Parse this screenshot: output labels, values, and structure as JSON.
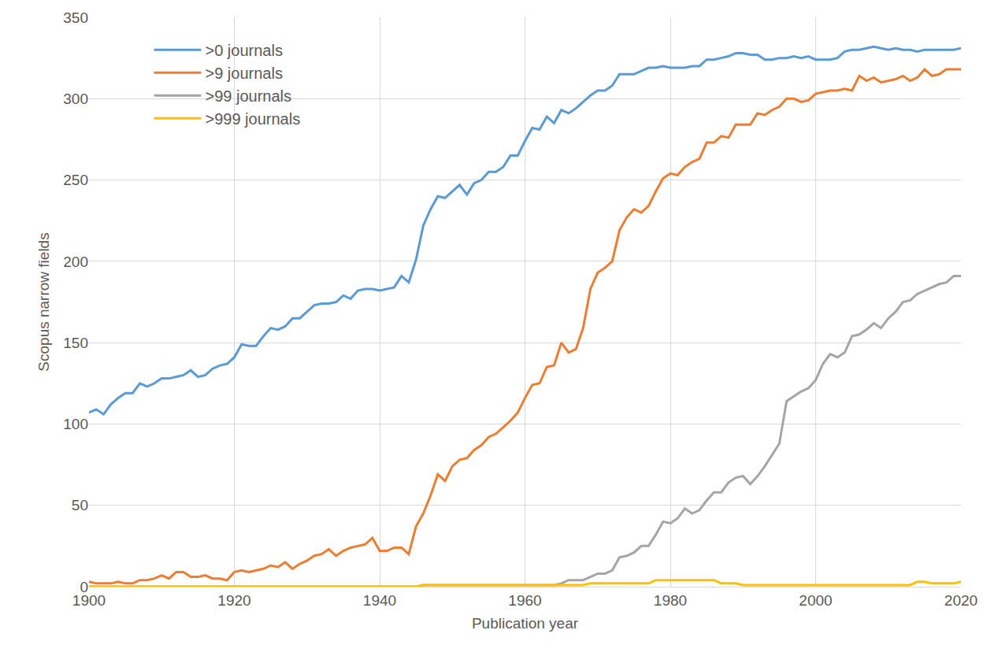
{
  "chart_data": {
    "type": "line",
    "x_label": "Publication year",
    "y_label": "Scopus narrow fields",
    "x": [
      1900,
      1901,
      1902,
      1903,
      1904,
      1905,
      1906,
      1907,
      1908,
      1909,
      1910,
      1911,
      1912,
      1913,
      1914,
      1915,
      1916,
      1917,
      1918,
      1919,
      1920,
      1921,
      1922,
      1923,
      1924,
      1925,
      1926,
      1927,
      1928,
      1929,
      1930,
      1931,
      1932,
      1933,
      1934,
      1935,
      1936,
      1937,
      1938,
      1939,
      1940,
      1941,
      1942,
      1943,
      1944,
      1945,
      1946,
      1947,
      1948,
      1949,
      1950,
      1951,
      1952,
      1953,
      1954,
      1955,
      1956,
      1957,
      1958,
      1959,
      1960,
      1961,
      1962,
      1963,
      1964,
      1965,
      1966,
      1967,
      1968,
      1969,
      1970,
      1971,
      1972,
      1973,
      1974,
      1975,
      1976,
      1977,
      1978,
      1979,
      1980,
      1981,
      1982,
      1983,
      1984,
      1985,
      1986,
      1987,
      1988,
      1989,
      1990,
      1991,
      1992,
      1993,
      1994,
      1995,
      1996,
      1997,
      1998,
      1999,
      2000,
      2001,
      2002,
      2003,
      2004,
      2005,
      2006,
      2007,
      2008,
      2009,
      2010,
      2011,
      2012,
      2013,
      2014,
      2015,
      2016,
      2017,
      2018,
      2019,
      2020
    ],
    "series": [
      {
        "name": ">0 journals",
        "color": "#5B9BD5",
        "values": [
          107,
          109,
          106,
          112,
          116,
          119,
          119,
          125,
          123,
          125,
          128,
          128,
          129,
          130,
          133,
          129,
          130,
          134,
          136,
          137,
          141,
          149,
          148,
          148,
          154,
          159,
          158,
          160,
          165,
          165,
          169,
          173,
          174,
          174,
          175,
          179,
          177,
          182,
          183,
          183,
          182,
          183,
          184,
          191,
          187,
          201,
          222,
          232,
          240,
          239,
          243,
          247,
          241,
          248,
          250,
          255,
          255,
          258,
          265,
          265,
          274,
          282,
          281,
          289,
          285,
          293,
          291,
          294,
          298,
          302,
          305,
          305,
          308,
          315,
          315,
          315,
          317,
          319,
          319,
          320,
          319,
          319,
          319,
          320,
          320,
          324,
          324,
          325,
          326,
          328,
          328,
          327,
          327,
          324,
          324,
          325,
          325,
          326,
          325,
          326,
          324,
          324,
          324,
          325,
          329,
          330,
          330,
          331,
          332,
          331,
          330,
          331,
          330,
          330,
          329,
          330,
          330,
          330,
          330,
          330,
          331
        ]
      },
      {
        "name": ">9 journals",
        "color": "#ED7D31",
        "values": [
          3,
          2,
          2,
          2,
          3,
          2,
          2,
          4,
          4,
          5,
          7,
          5,
          9,
          9,
          6,
          6,
          7,
          5,
          5,
          4,
          9,
          10,
          9,
          10,
          11,
          13,
          12,
          15,
          11,
          14,
          16,
          19,
          20,
          23,
          19,
          22,
          24,
          25,
          26,
          30,
          22,
          22,
          24,
          24,
          20,
          37,
          45,
          56,
          69,
          65,
          74,
          78,
          79,
          84,
          87,
          92,
          94,
          98,
          102,
          107,
          116,
          124,
          125,
          135,
          136,
          150,
          144,
          146,
          159,
          183,
          193,
          196,
          200,
          219,
          227,
          232,
          230,
          234,
          243,
          251,
          254,
          253,
          258,
          261,
          263,
          273,
          273,
          277,
          276,
          284,
          284,
          284,
          291,
          290,
          293,
          295,
          300,
          300,
          298,
          299,
          303,
          304,
          305,
          305,
          306,
          305,
          314,
          311,
          313,
          310,
          311,
          312,
          314,
          311,
          313,
          318,
          314,
          315,
          318,
          318,
          318
        ]
      },
      {
        "name": ">99 journals",
        "color": "#A5A5A5",
        "values": [
          0,
          0,
          0,
          0,
          0,
          0,
          0,
          0,
          0,
          0,
          0,
          0,
          0,
          0,
          0,
          0,
          0,
          0,
          0,
          0,
          0,
          0,
          0,
          0,
          0,
          0,
          0,
          0,
          0,
          0,
          0,
          0,
          0,
          0,
          0,
          0,
          0,
          0,
          0,
          0,
          0,
          0,
          0,
          0,
          0,
          0,
          1,
          1,
          1,
          1,
          1,
          1,
          1,
          1,
          1,
          1,
          1,
          1,
          1,
          1,
          1,
          1,
          1,
          1,
          1,
          2,
          4,
          4,
          4,
          6,
          8,
          8,
          10,
          18,
          19,
          21,
          25,
          25,
          32,
          40,
          39,
          42,
          48,
          45,
          47,
          53,
          58,
          58,
          64,
          67,
          68,
          63,
          68,
          74,
          81,
          88,
          114,
          117,
          120,
          122,
          127,
          137,
          143,
          141,
          144,
          154,
          155,
          158,
          162,
          159,
          165,
          169,
          175,
          176,
          180,
          182,
          184,
          186,
          187,
          191,
          191
        ]
      },
      {
        "name": ">999 journals",
        "color": "#FFC000",
        "values": [
          0,
          0,
          0,
          0,
          0,
          0,
          0,
          0,
          0,
          0,
          0,
          0,
          0,
          0,
          0,
          0,
          0,
          0,
          0,
          0,
          0,
          0,
          0,
          0,
          0,
          0,
          0,
          0,
          0,
          0,
          0,
          0,
          0,
          0,
          0,
          0,
          0,
          0,
          0,
          0,
          0,
          0,
          0,
          0,
          0,
          0,
          1,
          1,
          1,
          1,
          1,
          1,
          1,
          1,
          1,
          1,
          1,
          1,
          1,
          1,
          1,
          1,
          1,
          1,
          1,
          1,
          1,
          1,
          1,
          2,
          2,
          2,
          2,
          2,
          2,
          2,
          2,
          2,
          4,
          4,
          4,
          4,
          4,
          4,
          4,
          4,
          4,
          2,
          2,
          2,
          1,
          1,
          1,
          1,
          1,
          1,
          1,
          1,
          1,
          1,
          1,
          1,
          1,
          1,
          1,
          1,
          1,
          1,
          1,
          1,
          1,
          1,
          1,
          1,
          3,
          3,
          2,
          2,
          2,
          2,
          3
        ]
      }
    ],
    "xlim": [
      1900,
      2020
    ],
    "xticks": [
      1900,
      1920,
      1940,
      1960,
      1980,
      2000,
      2020
    ],
    "ylim": [
      0,
      350
    ],
    "yticks": [
      0,
      50,
      100,
      150,
      200,
      250,
      300,
      350
    ],
    "grid": true,
    "legend": "upper left"
  }
}
